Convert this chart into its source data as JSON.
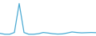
{
  "x": [
    0,
    1,
    2,
    3,
    4,
    5,
    6,
    7,
    8,
    9,
    10,
    11,
    12,
    13,
    14,
    15,
    16,
    17,
    18,
    19,
    20
  ],
  "y": [
    1.0,
    0.5,
    0.5,
    1.5,
    18.0,
    1.5,
    0.5,
    0.5,
    0.8,
    1.5,
    1.2,
    0.8,
    0.6,
    0.7,
    1.2,
    1.8,
    1.5,
    1.3,
    1.4,
    1.5,
    1.4
  ],
  "line_color": "#4baad3",
  "linewidth": 0.9,
  "background_color": "#ffffff",
  "ylim": [
    -0.5,
    20
  ],
  "xlim": [
    0,
    20
  ]
}
